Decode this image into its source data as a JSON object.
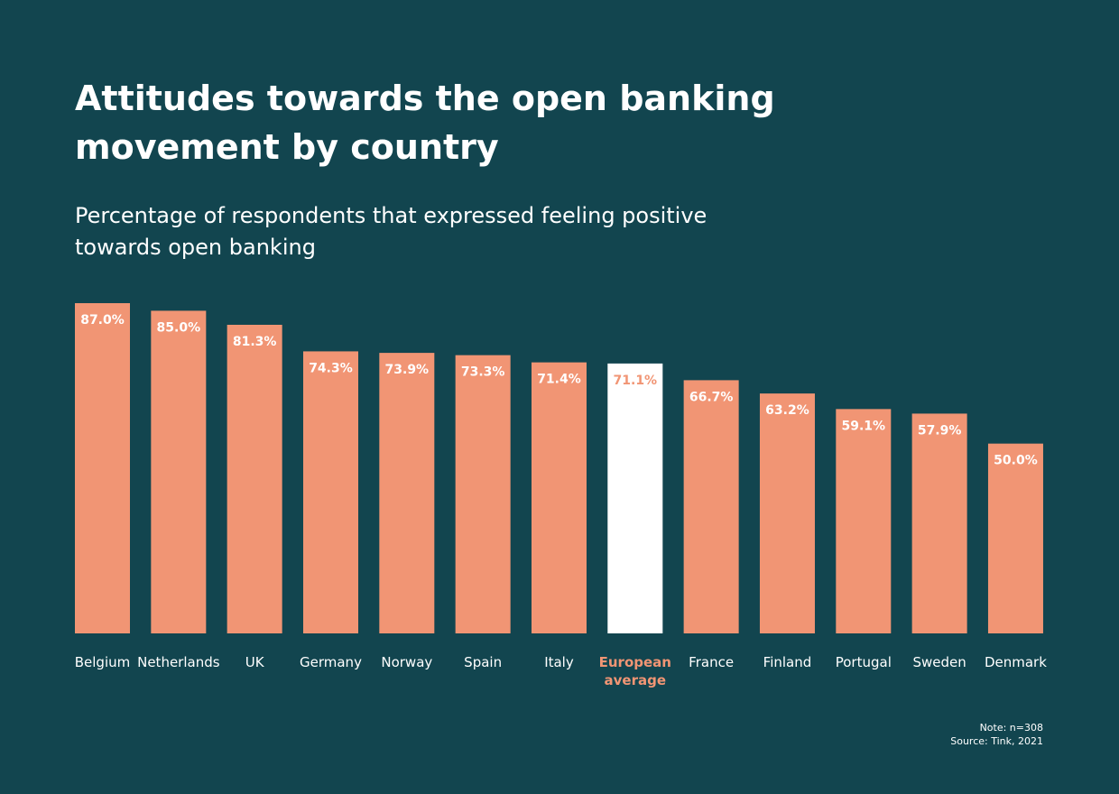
{
  "chart_data": {
    "type": "bar",
    "title": "Attitudes towards the open banking movement by country",
    "subtitle": "Percentage of respondents that expressed feeling positive towards open banking",
    "categories": [
      "Belgium",
      "Netherlands",
      "UK",
      "Germany",
      "Norway",
      "Spain",
      "Italy",
      "European average",
      "France",
      "Finland",
      "Portugal",
      "Sweden",
      "Denmark"
    ],
    "values": [
      87.0,
      85.0,
      81.3,
      74.3,
      73.9,
      73.3,
      71.4,
      71.1,
      66.7,
      63.2,
      59.1,
      57.9,
      50.0
    ],
    "value_labels": [
      "87.0%",
      "85.0%",
      "81.3%",
      "74.3%",
      "73.9%",
      "73.3%",
      "71.4%",
      "71.1%",
      "66.7%",
      "63.2%",
      "59.1%",
      "57.9%",
      "50.0%"
    ],
    "color": "#f19574",
    "colors": [
      "#f19574",
      "#f19574",
      "#f19574",
      "#f19574",
      "#f19574",
      "#f19574",
      "#f19574",
      "#ffffff",
      "#f19574",
      "#f19574",
      "#f19574",
      "#f19574",
      "#f19574"
    ],
    "note": "Note:  n=308",
    "source": "Source: Tink, 2021"
  }
}
